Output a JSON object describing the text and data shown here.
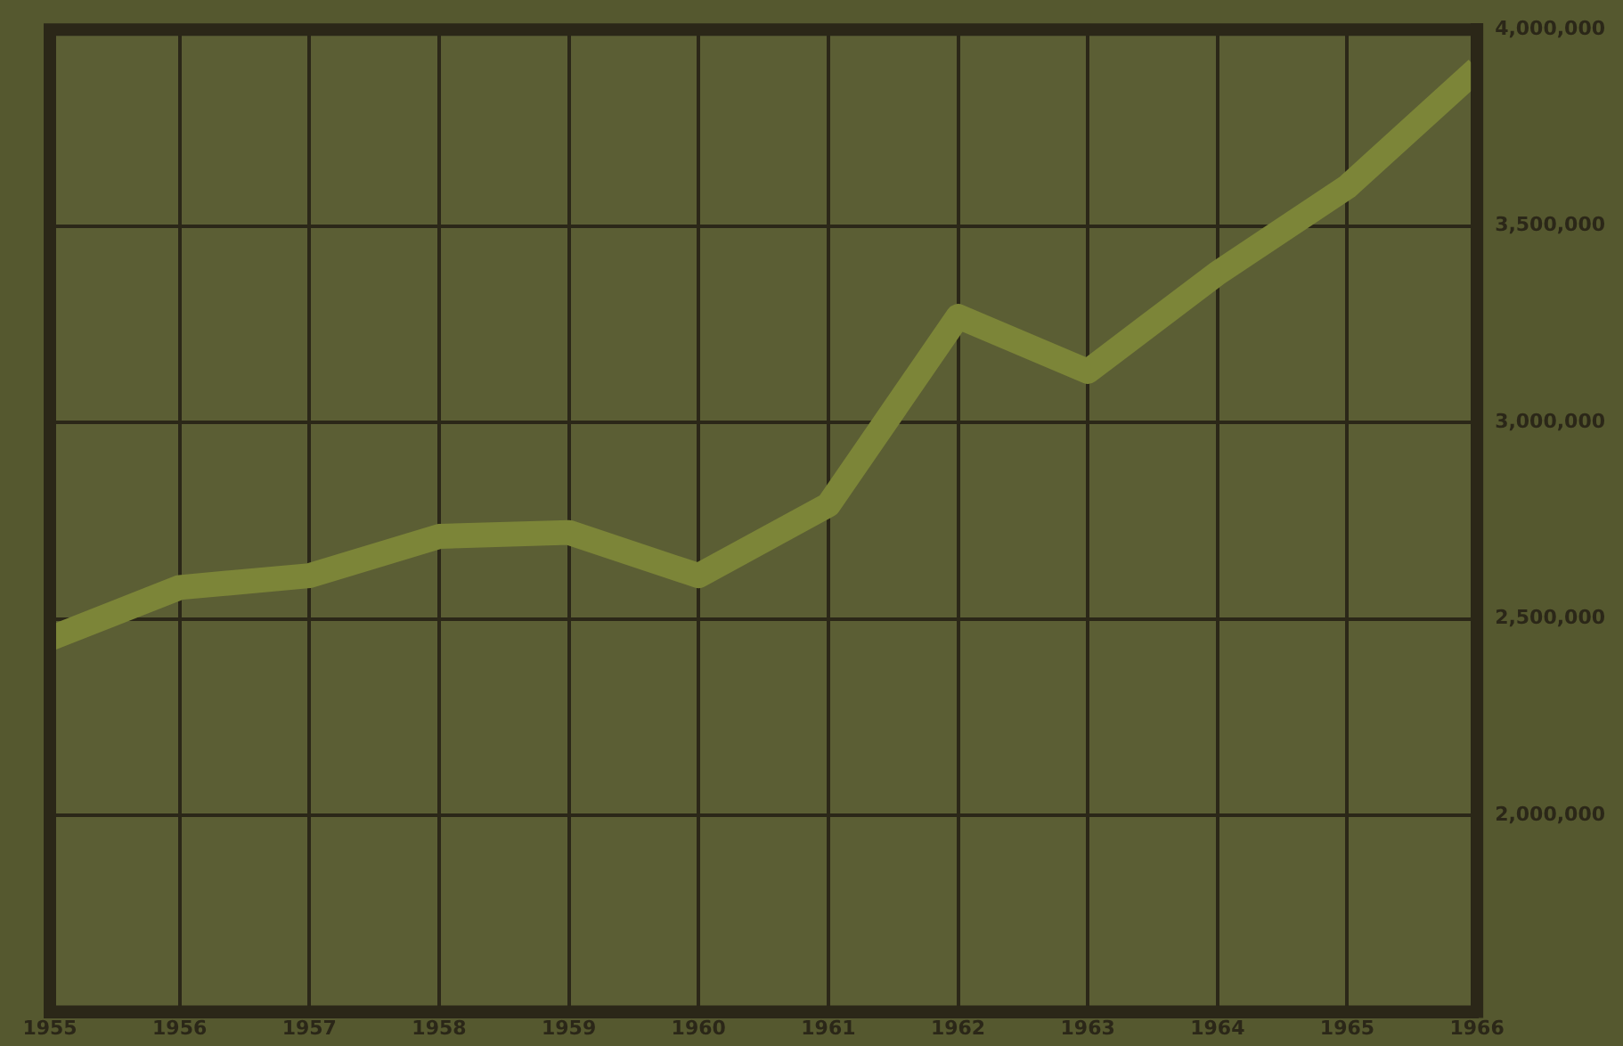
{
  "chart_data": {
    "type": "line",
    "x": [
      1955,
      1956,
      1957,
      1958,
      1959,
      1960,
      1961,
      1962,
      1963,
      1964,
      1965,
      1966
    ],
    "series": [
      {
        "color": "#7c8538",
        "values": [
          2450000,
          2580000,
          2610000,
          2710000,
          2720000,
          2610000,
          2790000,
          3270000,
          3130000,
          3380000,
          3600000,
          3900000
        ]
      }
    ],
    "xlim": [
      1955,
      1966
    ],
    "xticks": [
      1955,
      1956,
      1957,
      1958,
      1959,
      1960,
      1961,
      1962,
      1963,
      1964,
      1965,
      1966
    ],
    "ylim": [
      1500000,
      4000000
    ],
    "yticks": [
      {
        "value": 2000000,
        "label": "2,000,000"
      },
      {
        "value": 2500000,
        "label": "2,500,000"
      },
      {
        "value": 3000000,
        "label": "3,000,000"
      },
      {
        "value": 3500000,
        "label": "3,500,000"
      },
      {
        "value": 4000000,
        "label": "4,000,000"
      }
    ],
    "grid": true,
    "legend": false,
    "marker": "none",
    "line_style": "solid"
  }
}
